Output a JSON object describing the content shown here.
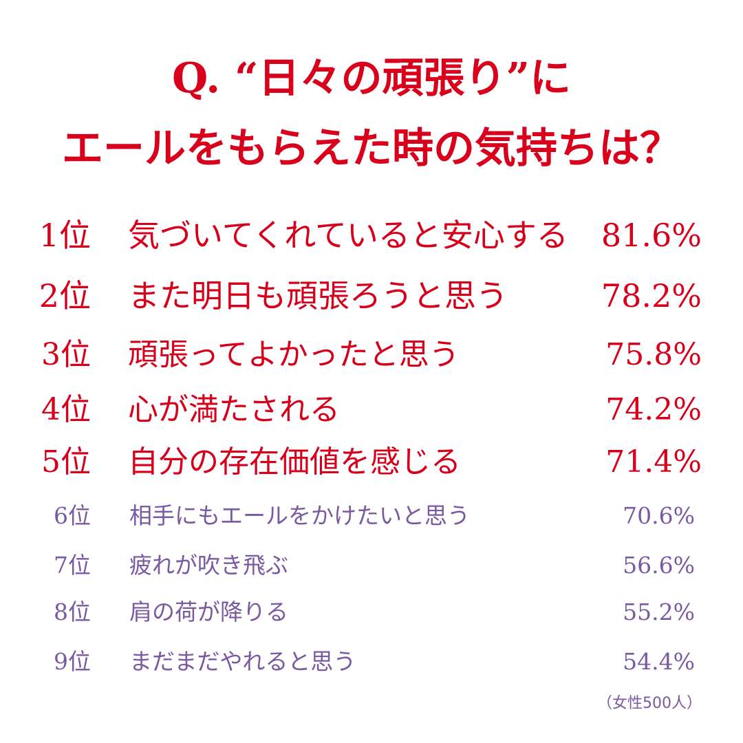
{
  "title": {
    "line1": "Q. “日々の頑張り”に",
    "line2": "エールをもらえた時の気持ちは？"
  },
  "ranking": [
    {
      "rank": "1位",
      "label": "気づいてくれていると安心する",
      "percent": "81.6%"
    },
    {
      "rank": "2位",
      "label": "また明日も頑張ろうと思う",
      "percent": "78.2%"
    },
    {
      "rank": "3位",
      "label": "頑張ってよかったと思う",
      "percent": "75.8%"
    },
    {
      "rank": "4位",
      "label": "心が満たされる",
      "percent": "74.2%"
    },
    {
      "rank": "5位",
      "label": "自分の存在価値を感じる",
      "percent": "71.4%"
    },
    {
      "rank": "6位",
      "label": "相手にもエールをかけたいと思う",
      "percent": "70.6%"
    },
    {
      "rank": "7位",
      "label": "疲れが吹き飛ぶ",
      "percent": "56.6%"
    },
    {
      "rank": "8位",
      "label": "肩の荷が降りる",
      "percent": "55.2%"
    },
    {
      "rank": "9位",
      "label": "まだまだやれると思う",
      "percent": "54.4%"
    }
  ],
  "footnote": "（女性500人）",
  "colors": {
    "top_text": "#d7001a",
    "sub_text": "#7a58a2",
    "background": "#ffffff"
  }
}
